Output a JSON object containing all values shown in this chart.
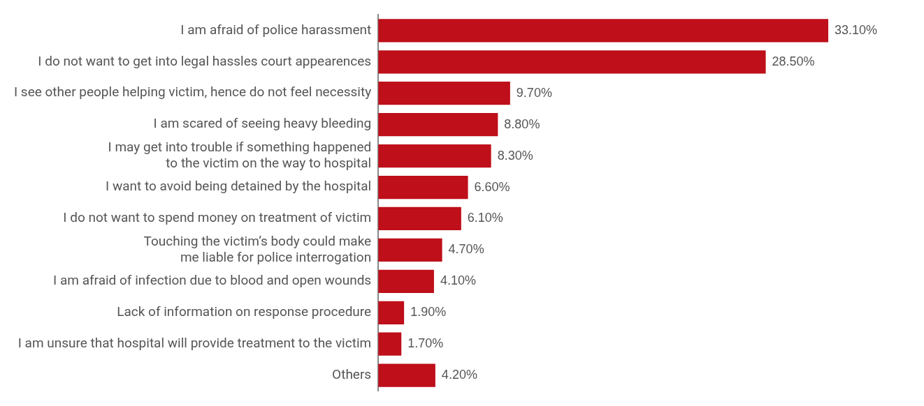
{
  "chart_data": {
    "type": "bar",
    "orientation": "horizontal",
    "categories": [
      "I am afraid of police harassment",
      "I do not want to get into legal hassles court appearences",
      "I see other people helping victim, hence do not feel necessity",
      "I am scared of seeing heavy bleeding",
      "I may get into trouble if something happened\nto the victim on the way to hospital",
      "I want to avoid being detained by the hospital",
      "I do not want to spend money on treatment of victim",
      "Touching the victim’s body could make\nme liable for police interrogation",
      "I am afraid of infection due to blood and open wounds",
      "Lack of information on response procedure",
      "I am unsure that hospital will provide treatment to the victim",
      "Others"
    ],
    "values": [
      33.1,
      28.5,
      9.7,
      8.8,
      8.3,
      6.6,
      6.1,
      4.7,
      4.1,
      1.9,
      1.7,
      4.2
    ],
    "value_labels": [
      "33.10%",
      "28.50%",
      "9.70%",
      "8.80%",
      "8.30%",
      "6.60%",
      "6.10%",
      "4.70%",
      "4.10%",
      "1.90%",
      "1.70%",
      "4.20%"
    ],
    "color": "#be0f1a",
    "grid": false,
    "legend": false,
    "tick_labels": "y"
  }
}
